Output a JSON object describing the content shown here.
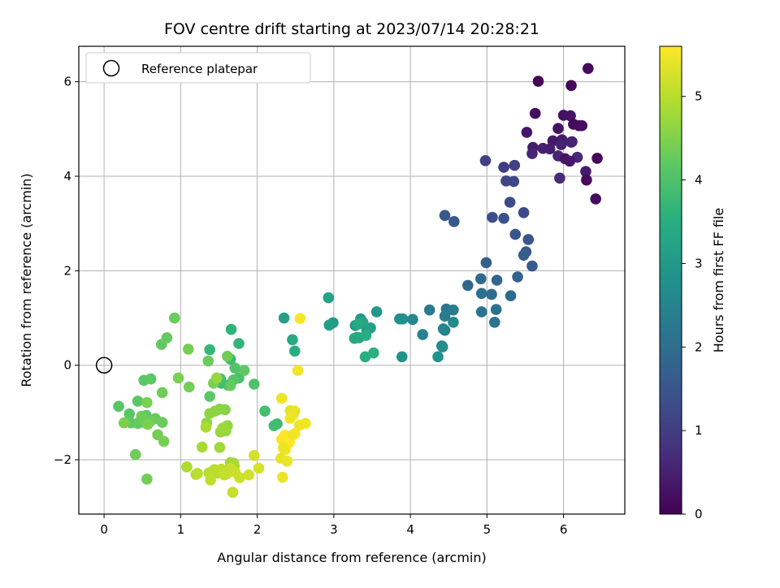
{
  "chart_data": {
    "type": "scatter",
    "title": "FOV centre drift starting at 2023/07/14 20:28:21",
    "xlabel": "Angular distance from reference (arcmin)",
    "ylabel": "Rotation from reference (arcmin)",
    "xlim": [
      -0.33,
      6.8
    ],
    "ylim": [
      -3.15,
      6.75
    ],
    "xticks": [
      0,
      1,
      2,
      3,
      4,
      5,
      6
    ],
    "yticks": [
      -2,
      0,
      2,
      4,
      6
    ],
    "xtick_labels": [
      "0",
      "1",
      "2",
      "3",
      "4",
      "5",
      "6"
    ],
    "ytick_labels": [
      "−2",
      "0",
      "2",
      "4",
      "6"
    ],
    "grid": true,
    "legend": {
      "placement": "top-left",
      "entries": [
        "Reference platepar"
      ]
    },
    "reference_point": {
      "x": 0,
      "y": 0
    },
    "colorbar": {
      "label": "Hours from first FF file",
      "range": [
        0,
        5.6
      ],
      "ticks": [
        0,
        1,
        2,
        3,
        4,
        5
      ],
      "tick_labels": [
        "0",
        "1",
        "2",
        "3",
        "4",
        "5"
      ],
      "colormap": "viridis"
    },
    "series": [
      {
        "x": [
          6.32,
          5.67,
          6.1,
          5.63,
          6.0,
          6.09,
          5.52,
          6.13,
          6.2,
          6.24,
          5.93,
          6.11,
          5.86,
          5.98,
          5.6,
          5.73,
          5.82,
          5.97,
          6.1,
          5.59,
          5.93,
          6.18,
          6.44,
          6.02,
          6.08,
          6.29,
          5.95,
          6.3,
          6.42,
          4.98,
          5.22,
          5.36,
          5.25,
          5.35,
          5.48,
          5.3,
          5.07,
          5.22,
          5.37,
          5.54,
          5.51,
          5.59,
          5.48,
          4.99,
          5.4,
          5.13,
          4.75,
          4.92,
          5.31,
          5.06,
          4.93,
          5.12,
          4.93,
          5.1,
          4.45,
          4.57
        ],
        "y": [
          6.28,
          6.01,
          5.92,
          5.33,
          5.29,
          5.28,
          4.93,
          5.1,
          5.07,
          5.07,
          5.01,
          4.73,
          4.75,
          4.77,
          4.61,
          4.59,
          4.58,
          4.67,
          4.72,
          4.48,
          4.43,
          4.4,
          4.38,
          4.37,
          4.32,
          4.1,
          3.96,
          3.92,
          3.52,
          4.33,
          4.19,
          4.23,
          3.9,
          3.89,
          3.23,
          3.45,
          3.13,
          3.11,
          2.77,
          2.66,
          2.4,
          2.1,
          2.33,
          2.17,
          1.87,
          1.8,
          1.69,
          1.83,
          1.47,
          1.5,
          1.52,
          1.18,
          1.13,
          0.91,
          3.17,
          3.04
        ],
        "t": [
          0.15,
          0.05,
          0.1,
          0.2,
          0.25,
          0.3,
          0.35,
          0.12,
          0.18,
          0.22,
          0.28,
          0.33,
          0.4,
          0.42,
          0.45,
          0.48,
          0.5,
          0.52,
          0.55,
          0.58,
          0.6,
          0.62,
          0.1,
          0.3,
          0.35,
          0.4,
          0.65,
          0.15,
          0.2,
          1.05,
          1.0,
          1.1,
          1.15,
          1.2,
          1.25,
          1.3,
          1.35,
          1.4,
          1.45,
          1.5,
          1.55,
          1.6,
          1.65,
          1.7,
          1.75,
          1.8,
          1.85,
          1.9,
          1.95,
          2.0,
          2.05,
          2.1,
          2.15,
          2.2,
          1.5,
          1.55
        ]
      },
      {
        "x": [
          4.47,
          4.25,
          4.45,
          4.56,
          4.45,
          4.16,
          4.43,
          4.03,
          4.41,
          4.56,
          4.42,
          3.86,
          3.9,
          4.36,
          3.89,
          3.56,
          3.35,
          3.43,
          3.28,
          3.3,
          3.48,
          3.38,
          3.33,
          3.27,
          3.32,
          3.42,
          3.41,
          3.52,
          2.99,
          2.94,
          2.93,
          2.35
        ],
        "y": [
          1.19,
          1.17,
          1.04,
          1.17,
          0.74,
          0.65,
          0.77,
          0.97,
          0.41,
          0.91,
          0.39,
          0.98,
          0.98,
          0.18,
          0.18,
          1.13,
          0.98,
          0.74,
          0.84,
          0.59,
          0.79,
          0.91,
          0.58,
          0.57,
          0.87,
          0.63,
          0.18,
          0.26,
          0.9,
          0.85,
          1.43,
          1.0
        ],
        "t": [
          2.2,
          2.25,
          2.3,
          2.35,
          2.4,
          2.45,
          2.5,
          2.55,
          2.6,
          2.65,
          2.7,
          2.75,
          2.8,
          2.85,
          2.9,
          2.95,
          3.0,
          3.05,
          3.1,
          3.15,
          3.2,
          3.25,
          3.3,
          3.35,
          3.4,
          3.45,
          3.5,
          3.55,
          3.0,
          3.1,
          3.2,
          3.15
        ]
      },
      {
        "x": [
          2.46,
          2.49,
          1.66,
          1.76,
          1.38,
          1.65,
          1.53,
          1.62,
          1.52,
          1.76,
          1.96,
          1.71,
          1.69,
          1.38,
          1.83,
          1.65,
          1.36,
          1.61,
          1.11,
          1.43,
          0.75,
          0.82,
          0.92,
          0.76,
          1.1,
          0.97,
          2.26,
          2.22,
          2.1
        ],
        "y": [
          0.54,
          0.3,
          0.76,
          0.46,
          0.33,
          0.13,
          -0.38,
          -0.42,
          -0.29,
          -0.27,
          -0.4,
          -0.06,
          -0.31,
          -0.66,
          -0.11,
          -0.43,
          0.09,
          0.19,
          -0.46,
          -0.38,
          0.44,
          0.58,
          1.0,
          -0.58,
          0.34,
          -0.27,
          -1.24,
          -1.28,
          -0.97
        ],
        "t": [
          3.4,
          3.45,
          3.6,
          3.65,
          3.7,
          3.75,
          3.8,
          3.85,
          3.9,
          3.95,
          4.0,
          4.05,
          4.1,
          4.15,
          4.2,
          4.25,
          4.3,
          4.35,
          4.4,
          4.45,
          4.2,
          4.25,
          4.3,
          4.35,
          4.4,
          4.45,
          3.8,
          3.85,
          3.9
        ]
      },
      {
        "x": [
          0.19,
          0.33,
          0.44,
          0.52,
          0.61,
          0.55,
          0.35,
          0.44,
          0.52,
          0.67,
          0.76,
          0.6,
          0.49,
          0.41,
          0.56,
          0.7,
          0.78,
          0.56,
          0.57,
          0.26
        ],
        "y": [
          -0.87,
          -1.03,
          -0.76,
          -0.32,
          -0.29,
          -1.06,
          -1.22,
          -1.23,
          -1.21,
          -1.13,
          -1.21,
          -1.19,
          -1.08,
          -1.89,
          -2.41,
          -1.47,
          -1.61,
          -0.79,
          -1.25,
          -1.22
        ],
        "t": [
          4.1,
          4.12,
          4.14,
          4.16,
          4.18,
          4.2,
          4.22,
          4.24,
          4.26,
          4.28,
          4.3,
          4.32,
          4.34,
          4.36,
          4.38,
          4.4,
          4.42,
          4.44,
          4.46,
          4.48
        ]
      },
      {
        "x": [
          1.58,
          1.51,
          1.45,
          1.38,
          1.34,
          1.61,
          1.59,
          1.52,
          1.55,
          1.51,
          1.65,
          1.69,
          1.7,
          1.63,
          1.6,
          1.48,
          1.37,
          1.44,
          1.4,
          1.45,
          1.53,
          1.57,
          1.6,
          1.65,
          1.71,
          1.77,
          1.89,
          1.96,
          2.02,
          1.08,
          1.2,
          1.22,
          1.39,
          1.68,
          1.28,
          1.33,
          1.47
        ],
        "y": [
          -0.94,
          -0.93,
          -0.97,
          -1.02,
          -1.22,
          -1.28,
          -1.39,
          -1.41,
          -1.33,
          -1.74,
          -2.06,
          -2.07,
          -2.13,
          -2.19,
          -2.22,
          -2.28,
          -2.28,
          -2.21,
          -2.26,
          -2.25,
          -2.2,
          -2.32,
          -2.3,
          -2.18,
          -2.26,
          -2.38,
          -2.32,
          -1.91,
          -2.18,
          -2.15,
          -2.31,
          -2.29,
          -2.43,
          -2.69,
          -1.73,
          -1.31,
          -0.27
        ],
        "t": [
          4.55,
          4.58,
          4.6,
          4.62,
          4.65,
          4.68,
          4.7,
          4.72,
          4.75,
          4.78,
          4.8,
          4.82,
          4.85,
          4.88,
          4.9,
          4.92,
          4.95,
          4.98,
          5.0,
          5.02,
          5.05,
          5.08,
          5.1,
          5.12,
          5.15,
          5.18,
          5.2,
          5.22,
          5.25,
          4.9,
          4.95,
          5.0,
          5.05,
          5.1,
          4.85,
          4.88,
          4.7
        ]
      },
      {
        "x": [
          2.56,
          2.53,
          2.32,
          2.43,
          2.49,
          2.47,
          2.43,
          2.55,
          2.63,
          2.49,
          2.41,
          2.32,
          2.36,
          2.42,
          2.37,
          2.47,
          2.34,
          2.31,
          2.39,
          2.33
        ],
        "y": [
          0.99,
          -0.11,
          -0.7,
          -0.96,
          -0.97,
          -1.04,
          -1.12,
          -1.27,
          -1.23,
          -1.45,
          -1.52,
          -1.57,
          -1.48,
          -1.63,
          -1.78,
          -1.47,
          -1.75,
          -1.97,
          -2.03,
          -2.37
        ],
        "t": [
          5.55,
          5.5,
          5.45,
          5.4,
          5.42,
          5.44,
          5.46,
          5.48,
          5.5,
          5.52,
          5.54,
          5.56,
          5.58,
          5.6,
          5.55,
          5.5,
          5.45,
          5.4,
          5.42,
          5.44
        ]
      }
    ]
  }
}
